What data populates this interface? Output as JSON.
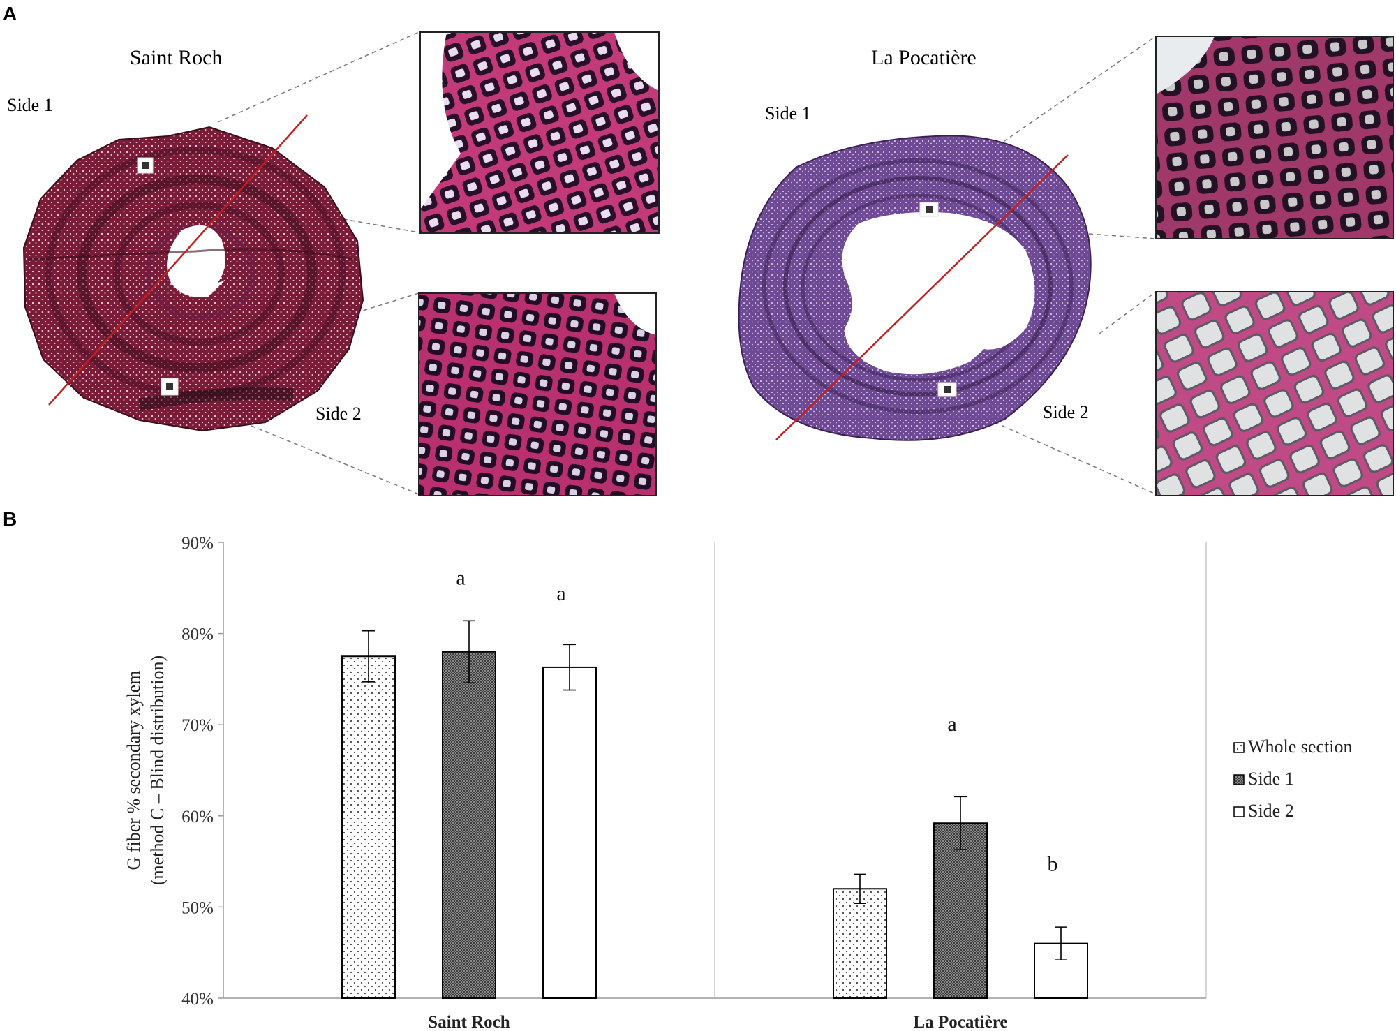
{
  "figure": {
    "panel_a_label": "A",
    "panel_b_label": "B",
    "sites": [
      {
        "title": "Saint Roch",
        "side1": "Side 1",
        "side2": "Side 2"
      },
      {
        "title": "La Pocatière",
        "side1": "Side 1",
        "side2": "Side 2"
      }
    ],
    "colors": {
      "section_saint_roch": "#8a1f3e",
      "section_la_pocatiere": "#7e4b96",
      "cell_wall": "#c23a78",
      "cell_lumen_dark": "#2a0f2a",
      "transect_line": "#c21f1f"
    }
  },
  "chart_data": {
    "type": "bar",
    "categories": [
      "Saint Roch",
      "La Pocatière"
    ],
    "ylabel_line1": "G fiber % secondary xylem",
    "ylabel_line2": "(method C – Blind distribution)",
    "ylim": [
      40,
      90
    ],
    "yticks": [
      40,
      50,
      60,
      70,
      80,
      90
    ],
    "ytick_labels": [
      "40%",
      "50%",
      "60%",
      "70%",
      "80%",
      "90%"
    ],
    "legend_position": "right",
    "grid": false,
    "series": [
      {
        "name": "Whole section",
        "pattern": "dots",
        "values": [
          77.5,
          52.0
        ],
        "errors": [
          2.8,
          1.6
        ],
        "letters": [
          "",
          ""
        ]
      },
      {
        "name": "Side 1",
        "pattern": "dense",
        "values": [
          78.0,
          59.2
        ],
        "errors": [
          3.4,
          2.9
        ],
        "letters": [
          "a",
          "a"
        ]
      },
      {
        "name": "Side 2",
        "pattern": "empty",
        "values": [
          76.3,
          46.0
        ],
        "errors": [
          2.5,
          1.8
        ],
        "letters": [
          "a",
          "b"
        ]
      }
    ]
  }
}
